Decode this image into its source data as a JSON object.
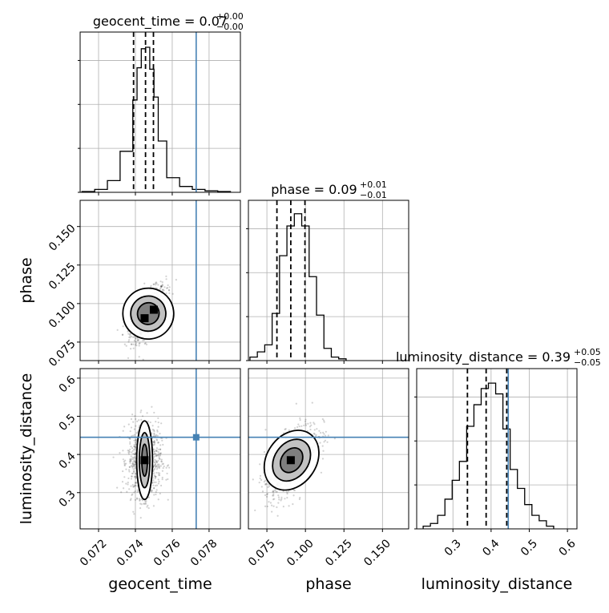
{
  "chart_data": {
    "type": "corner",
    "parameters": [
      "geocent_time",
      "phase",
      "luminosity_distance"
    ],
    "truths": {
      "geocent_time": 0.0773,
      "phase": null,
      "luminosity_distance": 0.445
    },
    "titles": [
      {
        "param": "geocent_time",
        "text": "geocent_time = 0.07",
        "sup": "+0.00",
        "sub": "−0.00"
      },
      {
        "param": "phase",
        "text": "phase = 0.09",
        "sup": "+0.01",
        "sub": "−0.01"
      },
      {
        "param": "luminosity_distance",
        "text": "luminosity_distance = 0.39",
        "sup": "+0.05",
        "sub": "−0.05"
      }
    ],
    "axes": {
      "geocent_time": {
        "range": [
          0.071,
          0.0797
        ],
        "ticks": [
          0.072,
          0.074,
          0.076,
          0.078
        ],
        "tick_labels": [
          "0.072",
          "0.074",
          "0.076",
          "0.078"
        ]
      },
      "phase": {
        "range": [
          0.063,
          0.167
        ],
        "ticks": [
          0.075,
          0.1,
          0.125,
          0.15
        ],
        "tick_labels": [
          "0.075",
          "0.100",
          "0.125",
          "0.150"
        ]
      },
      "luminosity_distance": {
        "range": [
          0.205,
          0.625
        ],
        "ticks": [
          0.3,
          0.4,
          0.5,
          0.6
        ],
        "tick_labels": [
          "0.3",
          "0.4",
          "0.5",
          "0.6"
        ]
      }
    },
    "histograms": [
      {
        "param": "geocent_time",
        "edges": [
          0.0711,
          0.07179,
          0.07248,
          0.07317,
          0.07386,
          0.07409,
          0.07432,
          0.07455,
          0.07478,
          0.07501,
          0.07524,
          0.07547,
          0.0757,
          0.0764,
          0.07709,
          0.07778,
          0.07847,
          0.07916
        ],
        "counts": [
          0.5,
          2,
          8,
          28,
          63,
          85,
          98,
          99,
          84,
          65,
          35,
          35,
          10,
          4,
          2,
          1,
          0.5
        ],
        "ymax": 105,
        "quantiles": [
          0.0739,
          0.07455,
          0.07498
        ]
      },
      {
        "param": "phase",
        "edges": [
          0.064,
          0.0688,
          0.0736,
          0.0784,
          0.0832,
          0.088,
          0.0928,
          0.0976,
          0.1024,
          0.1072,
          0.112,
          0.1168,
          0.1216,
          0.1264
        ],
        "counts": [
          2,
          5,
          9,
          27,
          60,
          77,
          84,
          77,
          48,
          26,
          7,
          2,
          1
        ],
        "ymax": 88,
        "quantiles": [
          0.0815,
          0.0905,
          0.0997
        ]
      },
      {
        "param": "luminosity_distance",
        "edges": [
          0.222,
          0.241,
          0.26,
          0.279,
          0.298,
          0.317,
          0.336,
          0.355,
          0.374,
          0.393,
          0.412,
          0.431,
          0.45,
          0.469,
          0.488,
          0.507,
          0.526,
          0.545,
          0.564
        ],
        "counts": [
          1,
          2,
          5,
          11,
          18,
          25,
          38,
          46,
          52,
          54,
          50,
          37,
          22,
          15,
          9,
          5,
          3,
          1
        ],
        "ymax": 57,
        "quantiles": [
          0.338,
          0.387,
          0.441
        ]
      }
    ],
    "pairs": [
      {
        "x": "geocent_time",
        "y": "phase",
        "center": [
          0.0747,
          0.0935
        ],
        "spread": [
          0.00048,
          0.0085
        ],
        "corr": 0.62,
        "contours": [
          {
            "a": 0.00058,
            "b": 0.0073,
            "angle": 53
          },
          {
            "a": 0.00095,
            "b": 0.0115,
            "angle": 52
          },
          {
            "a": 0.00138,
            "b": 0.0165,
            "angle": 52
          }
        ],
        "dense_cells": [
          [
            0.0745,
            0.0905
          ],
          [
            0.075,
            0.096
          ]
        ]
      },
      {
        "x": "geocent_time",
        "y": "luminosity_distance",
        "center": [
          0.0745,
          0.385
        ],
        "spread": [
          0.00045,
          0.048
        ],
        "corr": 0.0,
        "contours": [
          {
            "a": 0.00028,
            "b": 0.042,
            "angle": 0
          },
          {
            "a": 0.00052,
            "b": 0.072,
            "angle": 0
          },
          {
            "a": 0.00078,
            "b": 0.103,
            "angle": 0
          }
        ],
        "dense_cells": [
          [
            0.0745,
            0.385
          ]
        ]
      },
      {
        "x": "phase",
        "y": "luminosity_distance",
        "center": [
          0.091,
          0.385
        ],
        "spread": [
          0.0085,
          0.048
        ],
        "corr": 0.6,
        "contours": [
          {
            "a": 0.0065,
            "b": 0.042,
            "angle": 55
          },
          {
            "a": 0.011,
            "b": 0.071,
            "angle": 55
          },
          {
            "a": 0.016,
            "b": 0.1,
            "angle": 55
          }
        ],
        "dense_cells": [
          [
            0.0905,
            0.385
          ]
        ]
      }
    ],
    "grid": true,
    "colors": {
      "truth": "#4682b4",
      "hist": "#000000",
      "contour": "#000000",
      "points": "#000000",
      "grid": "#b0b0b0"
    }
  }
}
